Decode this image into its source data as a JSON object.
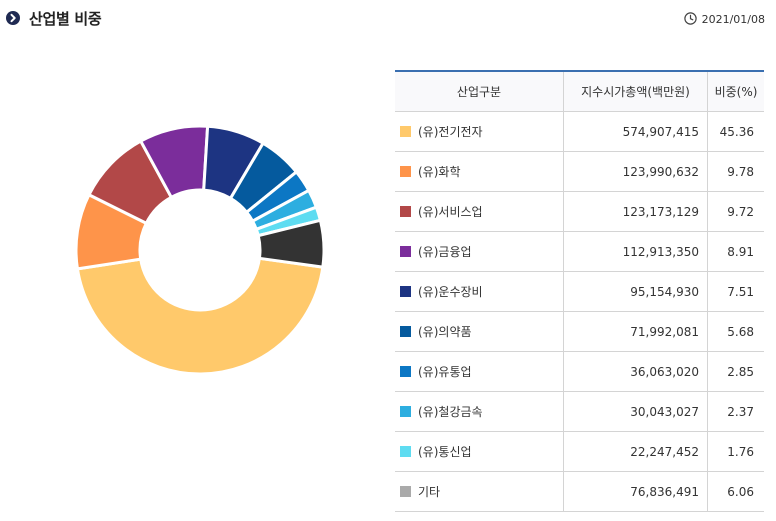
{
  "header": {
    "title": "산업별 비중",
    "date": "2021/01/08",
    "icon": "chevron-right-icon",
    "clock_icon": "clock-icon"
  },
  "table": {
    "headers": [
      "산업구분",
      "지수시가총액(백만원)",
      "비중(%)"
    ]
  },
  "chart_data": {
    "type": "pie",
    "donut": true,
    "categories": [
      "(유)전기전자",
      "(유)화학",
      "(유)서비스업",
      "(유)금융업",
      "(유)운수장비",
      "(유)의약품",
      "(유)유통업",
      "(유)철강금속",
      "(유)통신업",
      "기타"
    ],
    "market_cap": [
      "574,907,415",
      "123,990,632",
      "123,173,129",
      "112,913,350",
      "95,154,930",
      "71,992,081",
      "36,063,020",
      "30,043,027",
      "22,247,452",
      "76,836,491"
    ],
    "weights": [
      "45.36",
      "9.78",
      "9.72",
      "8.91",
      "7.51",
      "5.68",
      "2.85",
      "2.37",
      "1.76",
      "6.06"
    ],
    "values": [
      45.36,
      9.78,
      9.72,
      8.91,
      7.51,
      5.68,
      2.85,
      2.37,
      1.76,
      6.06
    ],
    "slice_colors": [
      "#ffc96b",
      "#fe944a",
      "#b24848",
      "#7b2d9b",
      "#1d3482",
      "#055a9e",
      "#0c77c4",
      "#2daee0",
      "#5edcf1",
      "#333333"
    ],
    "legend_colors": [
      "#ffc96b",
      "#fe944a",
      "#b24848",
      "#7b2d9b",
      "#1d3482",
      "#055a9e",
      "#0c77c4",
      "#2daee0",
      "#5edcf1",
      "#aaaaaa"
    ],
    "start_category": "(유)전기전자",
    "direction": "clockwise"
  }
}
